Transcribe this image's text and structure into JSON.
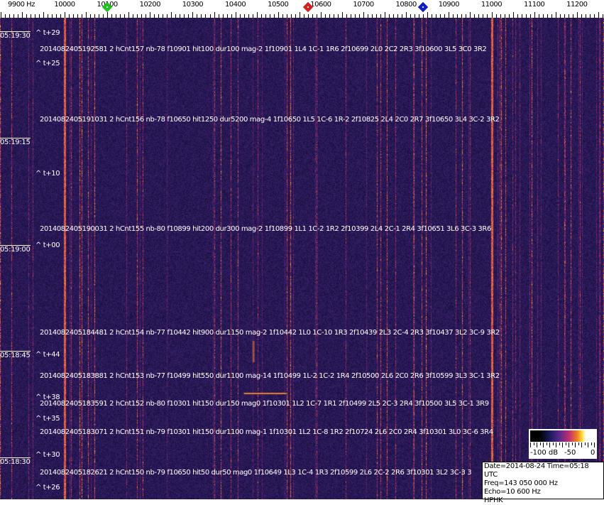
{
  "axis": {
    "unit_label": "9900 Hz",
    "ticks": [
      "10000",
      "10100",
      "10200",
      "10300",
      "10400",
      "10500",
      "10600",
      "10700",
      "10800",
      "10900",
      "11000",
      "11100",
      "11200"
    ],
    "markers": [
      {
        "name": "green-marker",
        "freq_hz": 10100,
        "color": "#20c020"
      },
      {
        "name": "red-marker",
        "freq_hz": 10570,
        "color": "#d02020"
      },
      {
        "name": "blue-marker",
        "freq_hz": 10840,
        "color": "#1020c0"
      }
    ]
  },
  "waterfall": {
    "bright_lines_hz": [
      10000,
      11000
    ],
    "times": [
      "05:19:30",
      "05:19:15",
      "05:19:00",
      "05:18:45",
      "05:18:30"
    ],
    "offsets": [
      "^ t+29",
      "^ t+25",
      "^ t+10",
      "^ t+00",
      "^ t+44",
      "^ t+38",
      "^ t+35",
      "^ t+30",
      "^ t+26"
    ],
    "events": [
      "2014082405192581 2 hCnt157 nb-78 f10901 hit100 dur100 mag-2 1f10901 1L4 1C-1 1R6 2f10699 2L0 2C2 2R3 3f10600 3L5 3C0 3R2",
      "2014082405191031 2 hCnt156 nb-78 f10650 hit1250 dur5200 mag-4 1f10650 1L5 1C-6 1R-2 2f10825 2L4 2C0 2R7 3f10650 3L4 3C-2 3R2",
      "2014082405190031 2 hCnt155 nb-80 f10899 hit200 dur300 mag-2 1f10899 1L1 1C-2 1R2 2f10399 2L4 2C-1 2R4 3f10651 3L6 3C-3 3R6",
      "2014082405184481 2 hCnt154 nb-77 f10442 hit900 dur1150 mag-2 1f10442 1L0 1C-10 1R3 2f10439 2L3 2C-4 2R3 3f10437 3L2 3C-9 3R2",
      "2014082405183881 2 hCnt153 nb-77 f10499 hit550 dur1100 mag-14 1f10499 1L-2 1C-2 1R4 2f10500 2L6 2C0 2R6 3f10599 3L3 3C-1 3R2",
      "2014082405183591 2 hCnt152 nb-80 f10301 hit150 dur150 mag0 1f10301 1L2 1C-7 1R1 2f10499 2L5 2C-3 2R4 3f10500 3L5 3C-1 3R9",
      "2014082405183071 2 hCnt151 nb-79 f10301 hit150 dur1100 mag-1 1f10301 1L2 1C-8 1R2 2f10724 2L6 2C0 2R4 3f10301 3L0 3C-6 3R4",
      "2014082405182621 2 hCnt150 nb-79 f10650 hit50 dur50 mag0 1f10649 1L3 1C-4 1R3 2f10599 2L6 2C-2 2R6 3f10301 3L2 3C-3 3"
    ]
  },
  "colorbar": {
    "labels": [
      "-100 dB",
      "-50",
      "0"
    ]
  },
  "info": {
    "date_time": "Date=2014-08-24 Time=05:18 UTC",
    "freq": "Freq=143 050 000 Hz",
    "echo": "Echo=10 600 Hz",
    "station": "HPHK"
  }
}
